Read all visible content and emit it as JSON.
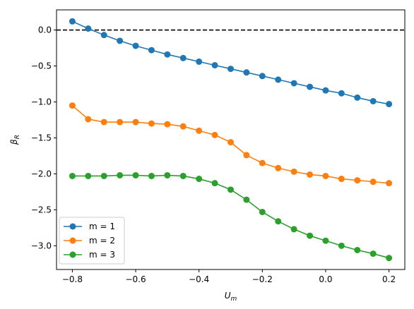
{
  "chart_data": {
    "type": "line",
    "title": "",
    "xlabel": "U",
    "xlabel_sub": "m",
    "ylabel": "β",
    "ylabel_sub": "R",
    "xlim": [
      -0.85,
      0.25
    ],
    "ylim": [
      -3.33,
      0.28
    ],
    "xticks": [
      -0.8,
      -0.6,
      -0.4,
      -0.2,
      0.0,
      0.2
    ],
    "xtick_labels": [
      "−0.8",
      "−0.6",
      "−0.4",
      "−0.2",
      "0.0",
      "0.2"
    ],
    "yticks": [
      0.0,
      -0.5,
      -1.0,
      -1.5,
      -2.0,
      -2.5,
      -3.0
    ],
    "ytick_labels": [
      "0.0",
      "−0.5",
      "−1.0",
      "−1.5",
      "−2.0",
      "−2.5",
      "−3.0"
    ],
    "grid": false,
    "legend_position": "lower-left",
    "reference_line": {
      "y": 0.0,
      "style": "dashed",
      "color": "#000000"
    },
    "x": [
      -0.8,
      -0.75,
      -0.7,
      -0.65,
      -0.6,
      -0.55,
      -0.5,
      -0.45,
      -0.4,
      -0.35,
      -0.3,
      -0.25,
      -0.2,
      -0.15,
      -0.1,
      -0.05,
      0.0,
      0.05,
      0.1,
      0.15,
      0.2
    ],
    "series": [
      {
        "name": "m = 1",
        "color": "#1f77b4",
        "values": [
          0.12,
          0.02,
          -0.07,
          -0.15,
          -0.22,
          -0.28,
          -0.34,
          -0.39,
          -0.44,
          -0.49,
          -0.54,
          -0.59,
          -0.64,
          -0.69,
          -0.74,
          -0.79,
          -0.84,
          -0.88,
          -0.94,
          -0.99,
          -1.03
        ]
      },
      {
        "name": "m = 2",
        "color": "#ff7f0e",
        "values": [
          -1.05,
          -1.24,
          -1.28,
          -1.28,
          -1.28,
          -1.3,
          -1.31,
          -1.34,
          -1.4,
          -1.46,
          -1.56,
          -1.74,
          -1.85,
          -1.92,
          -1.97,
          -2.01,
          -2.03,
          -2.07,
          -2.09,
          -2.11,
          -2.13
        ]
      },
      {
        "name": "m = 3",
        "color": "#2ca02c",
        "values": [
          -2.03,
          -2.03,
          -2.03,
          -2.02,
          -2.02,
          -2.03,
          -2.02,
          -2.03,
          -2.07,
          -2.13,
          -2.22,
          -2.36,
          -2.53,
          -2.66,
          -2.77,
          -2.86,
          -2.93,
          -3.0,
          -3.06,
          -3.11,
          -3.17
        ]
      }
    ]
  }
}
